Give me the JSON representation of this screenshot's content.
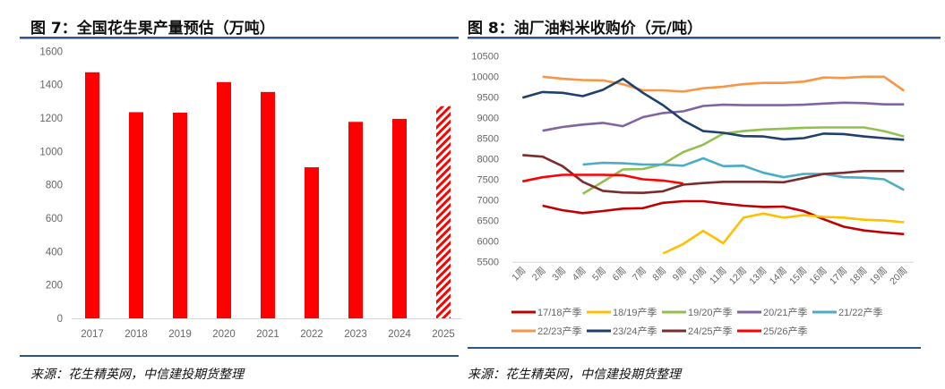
{
  "left": {
    "title": "图 7：全国花生果产量预估（万吨）",
    "source": "来源：花生精英网，中信建投期货整理"
  },
  "right": {
    "title": "图 8：油厂油料米收购价（元/吨）",
    "source": "来源：花生精英网，中信建投期货整理"
  },
  "colors": {
    "divider": "#2f5486",
    "bar": "#ff0000"
  },
  "chart_data": [
    {
      "type": "bar",
      "title": "图 7：全国花生果产量预估（万吨）",
      "categories": [
        "2017",
        "2018",
        "2019",
        "2020",
        "2021",
        "2022",
        "2023",
        "2024",
        "2025"
      ],
      "values": [
        1474,
        1235,
        1232,
        1415,
        1356,
        905,
        1177,
        1195,
        1271
      ],
      "estimated": [
        false,
        false,
        false,
        false,
        false,
        false,
        false,
        false,
        true
      ],
      "ylim": [
        0,
        1600
      ],
      "yticks": [
        0,
        200,
        400,
        600,
        800,
        1000,
        1200,
        1400,
        1600
      ],
      "grid": false
    },
    {
      "type": "line",
      "title": "图 8：油厂油料米收购价（元/吨）",
      "x": [
        "1周",
        "2周",
        "3周",
        "4周",
        "5周",
        "6周",
        "7周",
        "8周",
        "9周",
        "10周",
        "11周",
        "12周",
        "13周",
        "14周",
        "15周",
        "16周",
        "17周",
        "18周",
        "19周",
        "20周"
      ],
      "ylim": [
        5500,
        10500
      ],
      "yticks": [
        5500,
        6000,
        6500,
        7000,
        7500,
        8000,
        8500,
        9000,
        9500,
        10000,
        10500
      ],
      "legend": "bottom",
      "series": [
        {
          "name": "17/18产季",
          "color": "#c00000",
          "values": [
            null,
            6860,
            6750,
            6680,
            6730,
            6790,
            6800,
            6930,
            6970,
            6970,
            6910,
            6860,
            6830,
            6840,
            6730,
            6530,
            6350,
            6260,
            6210,
            6170
          ]
        },
        {
          "name": "18/19产季",
          "color": "#ffc000",
          "values": [
            null,
            null,
            null,
            null,
            null,
            null,
            null,
            5700,
            5930,
            6250,
            5950,
            6570,
            6670,
            6570,
            6630,
            6590,
            6570,
            6520,
            6500,
            6460
          ]
        },
        {
          "name": "19/20产季",
          "color": "#92c050",
          "values": [
            null,
            null,
            null,
            7150,
            7440,
            7740,
            7750,
            7870,
            8160,
            8340,
            8610,
            8670,
            8710,
            8730,
            8750,
            8760,
            8760,
            8760,
            8670,
            8540
          ]
        },
        {
          "name": "20/21产季",
          "color": "#8064a2",
          "values": [
            null,
            8680,
            8770,
            8830,
            8870,
            8790,
            9010,
            9110,
            9150,
            9280,
            9310,
            9300,
            9300,
            9300,
            9310,
            9340,
            9360,
            9350,
            9320,
            9320
          ]
        },
        {
          "name": "21/22产季",
          "color": "#4bacc6",
          "values": [
            null,
            null,
            null,
            7860,
            7900,
            7890,
            7860,
            7860,
            7830,
            8010,
            7820,
            7830,
            7660,
            7550,
            7630,
            7630,
            7550,
            7540,
            7500,
            7240
          ]
        },
        {
          "name": "22/23产季",
          "color": "#f79646",
          "values": [
            null,
            9990,
            9940,
            9910,
            9900,
            9810,
            9660,
            9660,
            9630,
            9710,
            9750,
            9810,
            9840,
            9840,
            9870,
            9970,
            9960,
            9990,
            9990,
            9650
          ]
        },
        {
          "name": "23/24产季",
          "color": "#1f3f6e",
          "values": [
            9480,
            9620,
            9600,
            9520,
            9670,
            9940,
            9600,
            9300,
            8930,
            8670,
            8630,
            8550,
            8540,
            8470,
            8500,
            8610,
            8600,
            8540,
            8500,
            8460
          ]
        },
        {
          "name": "24/25产季",
          "color": "#7b2c2c",
          "values": [
            8090,
            8050,
            7820,
            7440,
            7220,
            7180,
            7170,
            7210,
            7370,
            7410,
            7440,
            7440,
            7440,
            7430,
            7530,
            7630,
            7660,
            7700,
            7700,
            7700
          ]
        },
        {
          "name": "25/26产季",
          "color": "#ff0000",
          "values": [
            7450,
            7550,
            7610,
            7610,
            7610,
            7600,
            7500,
            7470,
            7400,
            null,
            null,
            null,
            null,
            null,
            null,
            null,
            null,
            null,
            null,
            null
          ]
        }
      ]
    }
  ]
}
